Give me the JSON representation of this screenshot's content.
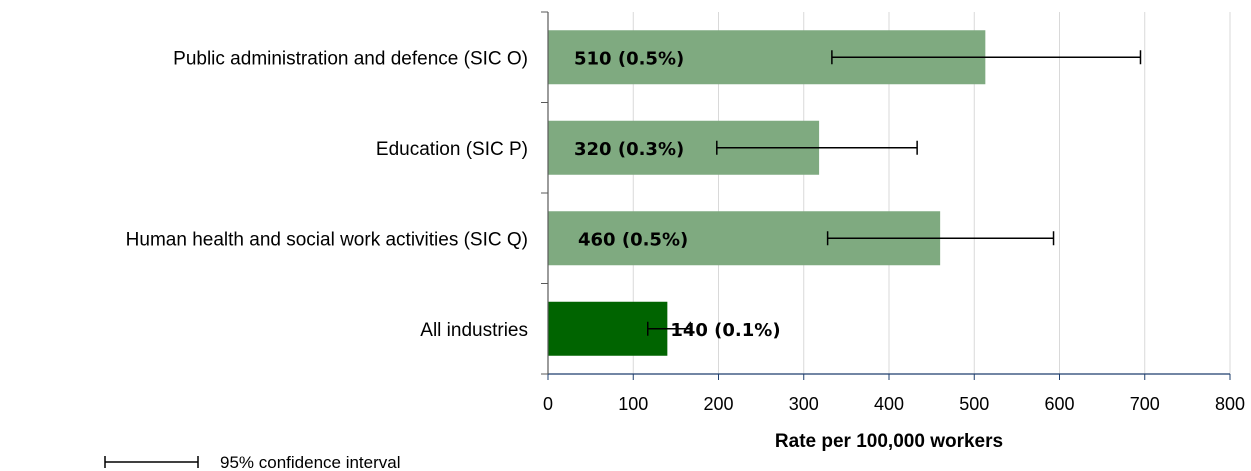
{
  "chart_data": {
    "type": "bar",
    "orientation": "horizontal",
    "categories": [
      "Public administration and defence (SIC O)",
      "Education (SIC P)",
      "Human health and social work activities (SIC Q)",
      "All industries"
    ],
    "values": [
      513,
      318,
      460,
      140
    ],
    "ci_lower": [
      333,
      198,
      328,
      117
    ],
    "ci_upper": [
      695,
      433,
      593,
      167
    ],
    "data_labels": [
      "510 (0.5%)",
      "320 (0.3%)",
      "460 (0.5%)",
      "140 (0.1%)"
    ],
    "bar_colors": [
      "#7faa80",
      "#7faa80",
      "#7faa80",
      "#006400"
    ],
    "xlabel": "Rate per 100,000 workers",
    "ylabel": "",
    "xlim": [
      0,
      800
    ],
    "x_ticks": [
      "0",
      "100",
      "200",
      "300",
      "400",
      "500",
      "600",
      "700",
      "800"
    ],
    "grid": true,
    "legend": {
      "label": "95% confidence interval",
      "placement": "bottom-left"
    }
  }
}
